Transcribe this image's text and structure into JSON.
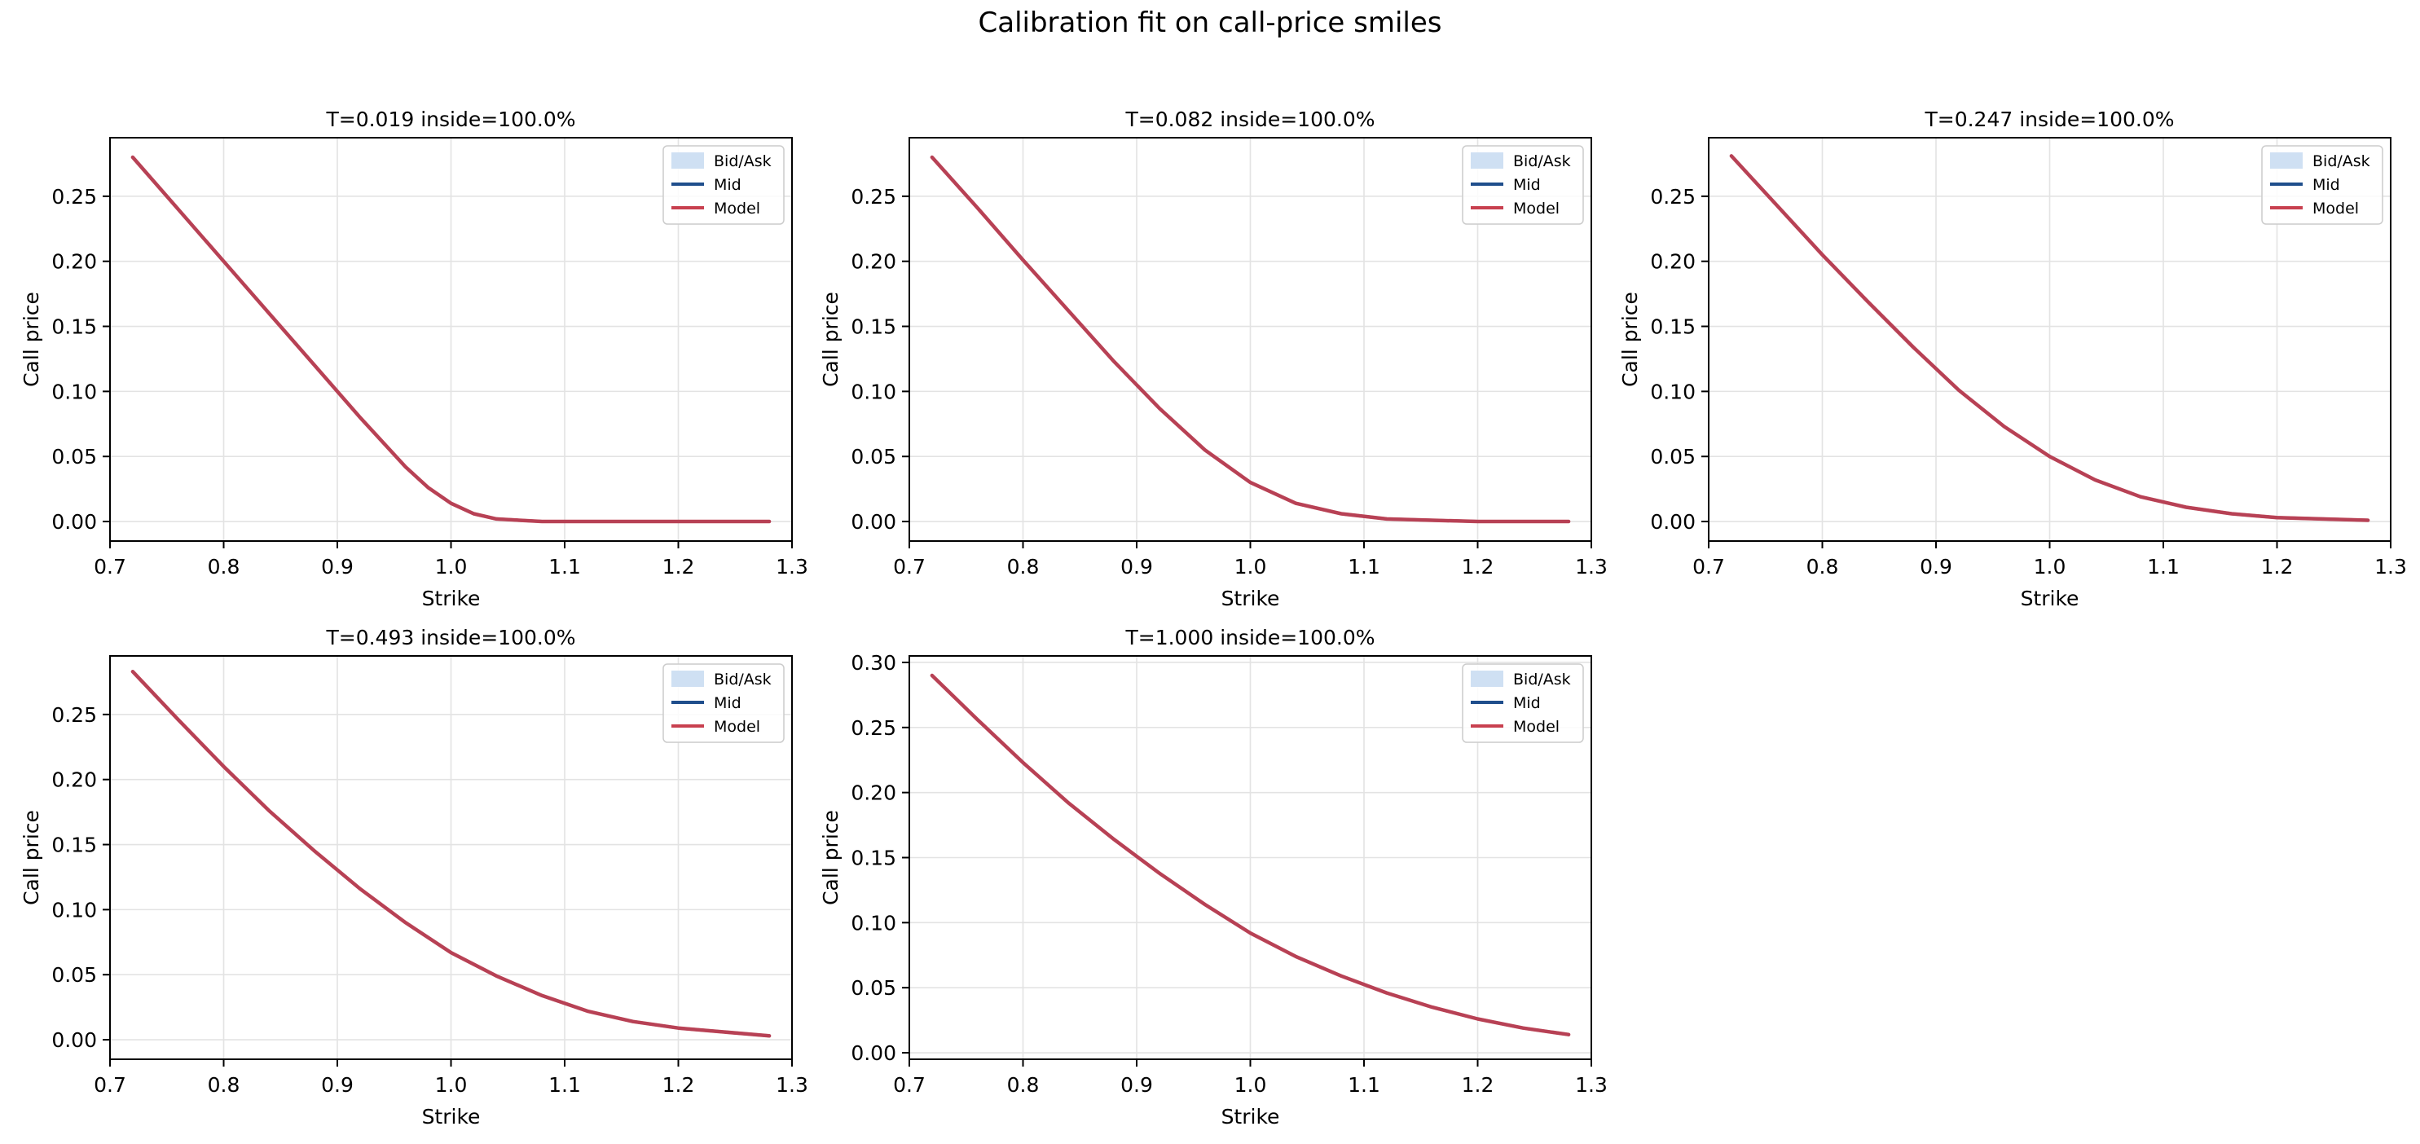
{
  "figure": {
    "title": "Calibration fit on call-price smiles"
  },
  "colors": {
    "bidask_fill": "#cfe0f3",
    "mid": "#1f4e8c",
    "model": "#c8404f",
    "grid": "#e3e3e3",
    "axis": "#000000"
  },
  "chart_data": [
    {
      "type": "line",
      "title": "T=0.019  inside=100.0%",
      "xlabel": "Strike",
      "ylabel": "Call price",
      "xlim": [
        0.7,
        1.3
      ],
      "ylim": [
        -0.015,
        0.295
      ],
      "xticks": [
        "0.7",
        "0.8",
        "0.9",
        "1.0",
        "1.1",
        "1.2",
        "1.3"
      ],
      "yticks": [
        "0.00",
        "0.05",
        "0.10",
        "0.15",
        "0.20",
        "0.25"
      ],
      "grid": true,
      "legend": {
        "position": "top-right",
        "entries": [
          "Bid/Ask",
          "Mid",
          "Model"
        ]
      },
      "x": [
        0.72,
        0.76,
        0.8,
        0.84,
        0.88,
        0.92,
        0.96,
        0.98,
        1.0,
        1.02,
        1.04,
        1.06,
        1.08,
        1.1,
        1.15,
        1.2,
        1.25,
        1.28
      ],
      "series": [
        {
          "name": "Mid",
          "values": [
            0.28,
            0.24,
            0.2,
            0.16,
            0.12,
            0.08,
            0.042,
            0.026,
            0.014,
            0.006,
            0.002,
            0.001,
            0.0,
            0.0,
            0.0,
            0.0,
            0.0,
            0.0
          ]
        },
        {
          "name": "Model",
          "values": [
            0.28,
            0.24,
            0.2,
            0.16,
            0.12,
            0.08,
            0.042,
            0.026,
            0.014,
            0.006,
            0.002,
            0.001,
            0.0,
            0.0,
            0.0,
            0.0,
            0.0,
            0.0
          ]
        }
      ],
      "bid_ask_band": {
        "lower": [
          0.279,
          0.239,
          0.199,
          0.159,
          0.119,
          0.079,
          0.041,
          0.025,
          0.013,
          0.005,
          0.001,
          0.0,
          0.0,
          0.0,
          0.0,
          0.0,
          0.0,
          0.0
        ],
        "upper": [
          0.281,
          0.241,
          0.201,
          0.161,
          0.121,
          0.081,
          0.043,
          0.027,
          0.015,
          0.007,
          0.003,
          0.002,
          0.001,
          0.001,
          0.001,
          0.001,
          0.001,
          0.001
        ]
      }
    },
    {
      "type": "line",
      "title": "T=0.082  inside=100.0%",
      "xlabel": "Strike",
      "ylabel": "Call price",
      "xlim": [
        0.7,
        1.3
      ],
      "ylim": [
        -0.015,
        0.295
      ],
      "xticks": [
        "0.7",
        "0.8",
        "0.9",
        "1.0",
        "1.1",
        "1.2",
        "1.3"
      ],
      "yticks": [
        "0.00",
        "0.05",
        "0.10",
        "0.15",
        "0.20",
        "0.25"
      ],
      "grid": true,
      "legend": {
        "position": "top-right",
        "entries": [
          "Bid/Ask",
          "Mid",
          "Model"
        ]
      },
      "x": [
        0.72,
        0.76,
        0.8,
        0.84,
        0.88,
        0.92,
        0.96,
        1.0,
        1.04,
        1.08,
        1.12,
        1.16,
        1.2,
        1.24,
        1.28
      ],
      "series": [
        {
          "name": "Mid",
          "values": [
            0.28,
            0.241,
            0.201,
            0.162,
            0.123,
            0.087,
            0.055,
            0.03,
            0.014,
            0.006,
            0.002,
            0.001,
            0.0,
            0.0,
            0.0
          ]
        },
        {
          "name": "Model",
          "values": [
            0.28,
            0.241,
            0.201,
            0.162,
            0.123,
            0.087,
            0.055,
            0.03,
            0.014,
            0.006,
            0.002,
            0.001,
            0.0,
            0.0,
            0.0
          ]
        }
      ],
      "bid_ask_band": {
        "lower": [
          0.279,
          0.24,
          0.2,
          0.161,
          0.122,
          0.086,
          0.054,
          0.029,
          0.013,
          0.005,
          0.001,
          0.0,
          0.0,
          0.0,
          0.0
        ],
        "upper": [
          0.281,
          0.242,
          0.202,
          0.163,
          0.124,
          0.088,
          0.056,
          0.031,
          0.015,
          0.007,
          0.003,
          0.002,
          0.001,
          0.001,
          0.001
        ]
      }
    },
    {
      "type": "line",
      "title": "T=0.247  inside=100.0%",
      "xlabel": "Strike",
      "ylabel": "Call price",
      "xlim": [
        0.7,
        1.3
      ],
      "ylim": [
        -0.015,
        0.295
      ],
      "xticks": [
        "0.7",
        "0.8",
        "0.9",
        "1.0",
        "1.1",
        "1.2",
        "1.3"
      ],
      "yticks": [
        "0.00",
        "0.05",
        "0.10",
        "0.15",
        "0.20",
        "0.25"
      ],
      "grid": true,
      "legend": {
        "position": "top-right",
        "entries": [
          "Bid/Ask",
          "Mid",
          "Model"
        ]
      },
      "x": [
        0.72,
        0.76,
        0.8,
        0.84,
        0.88,
        0.92,
        0.96,
        1.0,
        1.04,
        1.08,
        1.12,
        1.16,
        1.2,
        1.24,
        1.28
      ],
      "series": [
        {
          "name": "Mid",
          "values": [
            0.281,
            0.243,
            0.205,
            0.169,
            0.134,
            0.101,
            0.073,
            0.05,
            0.032,
            0.019,
            0.011,
            0.006,
            0.003,
            0.002,
            0.001
          ]
        },
        {
          "name": "Model",
          "values": [
            0.281,
            0.243,
            0.205,
            0.169,
            0.134,
            0.101,
            0.073,
            0.05,
            0.032,
            0.019,
            0.011,
            0.006,
            0.003,
            0.002,
            0.001
          ]
        }
      ],
      "bid_ask_band": {
        "lower": [
          0.28,
          0.242,
          0.204,
          0.168,
          0.133,
          0.1,
          0.072,
          0.049,
          0.031,
          0.018,
          0.01,
          0.005,
          0.002,
          0.001,
          0.0
        ],
        "upper": [
          0.282,
          0.244,
          0.206,
          0.17,
          0.135,
          0.102,
          0.074,
          0.051,
          0.033,
          0.02,
          0.012,
          0.007,
          0.004,
          0.003,
          0.002
        ]
      }
    },
    {
      "type": "line",
      "title": "T=0.493  inside=100.0%",
      "xlabel": "Strike",
      "ylabel": "Call price",
      "xlim": [
        0.7,
        1.3
      ],
      "ylim": [
        -0.015,
        0.295
      ],
      "xticks": [
        "0.7",
        "0.8",
        "0.9",
        "1.0",
        "1.1",
        "1.2",
        "1.3"
      ],
      "yticks": [
        "0.00",
        "0.05",
        "0.10",
        "0.15",
        "0.20",
        "0.25"
      ],
      "grid": true,
      "legend": {
        "position": "top-right",
        "entries": [
          "Bid/Ask",
          "Mid",
          "Model"
        ]
      },
      "x": [
        0.72,
        0.76,
        0.8,
        0.84,
        0.88,
        0.92,
        0.96,
        1.0,
        1.04,
        1.08,
        1.12,
        1.16,
        1.2,
        1.24,
        1.28
      ],
      "series": [
        {
          "name": "Mid",
          "values": [
            0.283,
            0.246,
            0.21,
            0.176,
            0.145,
            0.116,
            0.09,
            0.067,
            0.049,
            0.034,
            0.022,
            0.014,
            0.009,
            0.006,
            0.003
          ]
        },
        {
          "name": "Model",
          "values": [
            0.283,
            0.246,
            0.21,
            0.176,
            0.145,
            0.116,
            0.09,
            0.067,
            0.049,
            0.034,
            0.022,
            0.014,
            0.009,
            0.006,
            0.003
          ]
        }
      ],
      "bid_ask_band": {
        "lower": [
          0.282,
          0.245,
          0.209,
          0.175,
          0.144,
          0.115,
          0.089,
          0.066,
          0.048,
          0.033,
          0.021,
          0.013,
          0.008,
          0.005,
          0.002
        ],
        "upper": [
          0.284,
          0.247,
          0.211,
          0.177,
          0.146,
          0.117,
          0.091,
          0.068,
          0.05,
          0.035,
          0.023,
          0.015,
          0.01,
          0.007,
          0.004
        ]
      }
    },
    {
      "type": "line",
      "title": "T=1.000  inside=100.0%",
      "xlabel": "Strike",
      "ylabel": "Call price",
      "xlim": [
        0.7,
        1.3
      ],
      "ylim": [
        -0.005,
        0.305
      ],
      "xticks": [
        "0.7",
        "0.8",
        "0.9",
        "1.0",
        "1.1",
        "1.2",
        "1.3"
      ],
      "yticks": [
        "0.00",
        "0.05",
        "0.10",
        "0.15",
        "0.20",
        "0.25",
        "0.30"
      ],
      "grid": true,
      "legend": {
        "position": "top-right",
        "entries": [
          "Bid/Ask",
          "Mid",
          "Model"
        ]
      },
      "x": [
        0.72,
        0.76,
        0.8,
        0.84,
        0.88,
        0.92,
        0.96,
        1.0,
        1.04,
        1.08,
        1.12,
        1.16,
        1.2,
        1.24,
        1.28
      ],
      "series": [
        {
          "name": "Mid",
          "values": [
            0.29,
            0.256,
            0.223,
            0.192,
            0.164,
            0.138,
            0.114,
            0.092,
            0.074,
            0.059,
            0.046,
            0.035,
            0.026,
            0.019,
            0.014
          ]
        },
        {
          "name": "Model",
          "values": [
            0.29,
            0.256,
            0.223,
            0.192,
            0.164,
            0.138,
            0.114,
            0.092,
            0.074,
            0.059,
            0.046,
            0.035,
            0.026,
            0.019,
            0.014
          ]
        }
      ],
      "bid_ask_band": {
        "lower": [
          0.289,
          0.255,
          0.222,
          0.191,
          0.163,
          0.137,
          0.113,
          0.091,
          0.073,
          0.058,
          0.045,
          0.034,
          0.025,
          0.018,
          0.013
        ],
        "upper": [
          0.291,
          0.257,
          0.224,
          0.193,
          0.165,
          0.139,
          0.115,
          0.093,
          0.075,
          0.06,
          0.047,
          0.036,
          0.027,
          0.02,
          0.015
        ]
      }
    }
  ]
}
